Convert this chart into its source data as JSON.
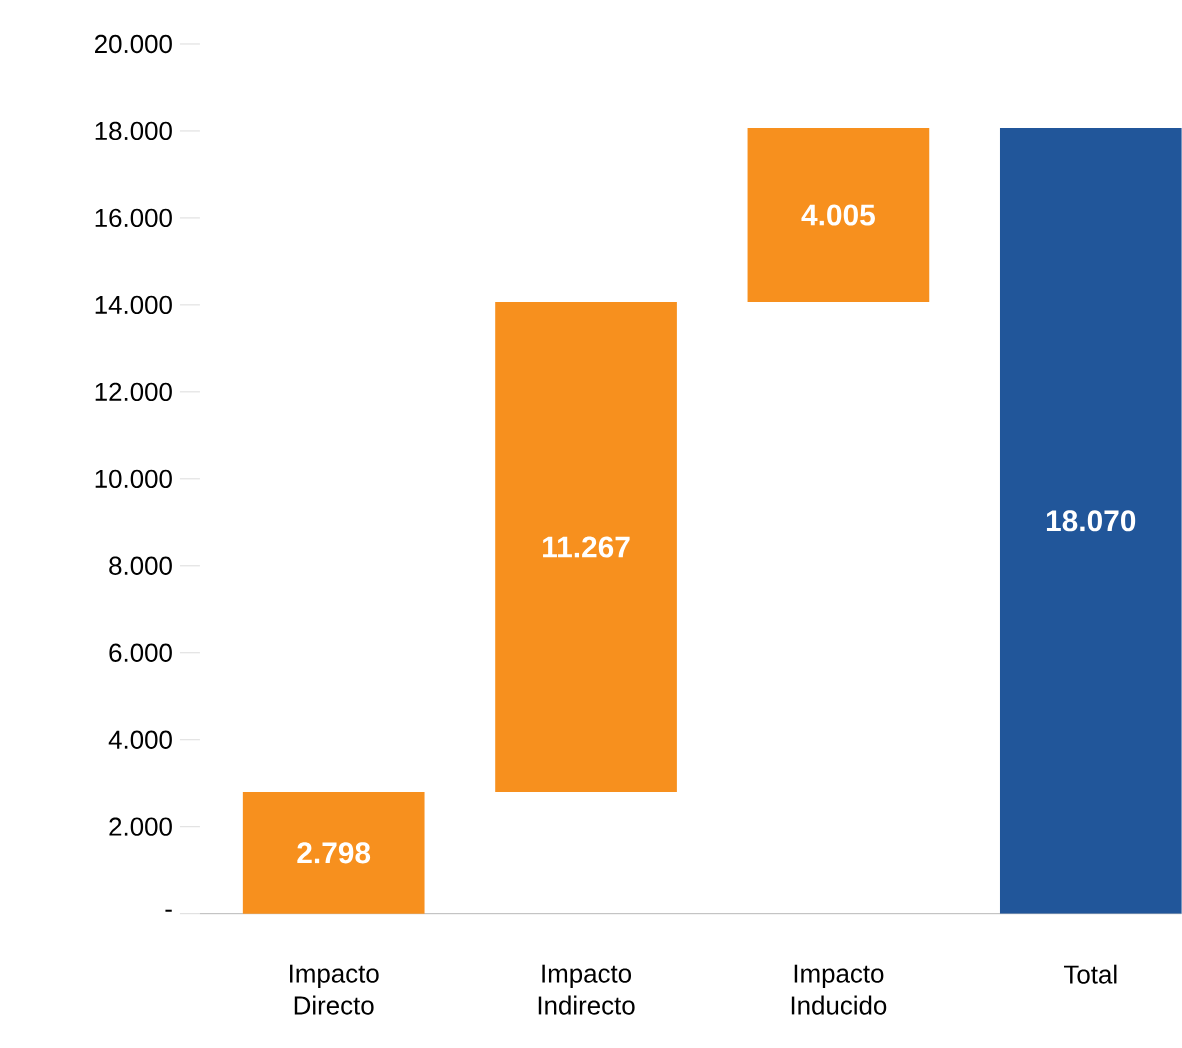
{
  "chart_data": {
    "type": "bar",
    "categories": [
      "Impacto Directo",
      "Impacto Indirecto",
      "Impacto Inducido",
      "Total"
    ],
    "values": [
      2798,
      11267,
      4005,
      18070
    ],
    "base": [
      0,
      2798,
      14065,
      0
    ],
    "colors": [
      "#f7901e",
      "#f7901e",
      "#f7901e",
      "#21569a"
    ],
    "value_labels": [
      "2.798",
      "11.267",
      "4.005",
      "18.070"
    ],
    "ylim": [
      0,
      20000
    ],
    "yticks": [
      {
        "value": 0,
        "label": "-"
      },
      {
        "value": 2000,
        "label": "2.000"
      },
      {
        "value": 4000,
        "label": "4.000"
      },
      {
        "value": 6000,
        "label": "6.000"
      },
      {
        "value": 8000,
        "label": "8.000"
      },
      {
        "value": 10000,
        "label": "10.000"
      },
      {
        "value": 12000,
        "label": "12.000"
      },
      {
        "value": 14000,
        "label": "14.000"
      },
      {
        "value": 16000,
        "label": "16.000"
      },
      {
        "value": 18000,
        "label": "18.000"
      },
      {
        "value": 20000,
        "label": "20.000"
      }
    ]
  }
}
